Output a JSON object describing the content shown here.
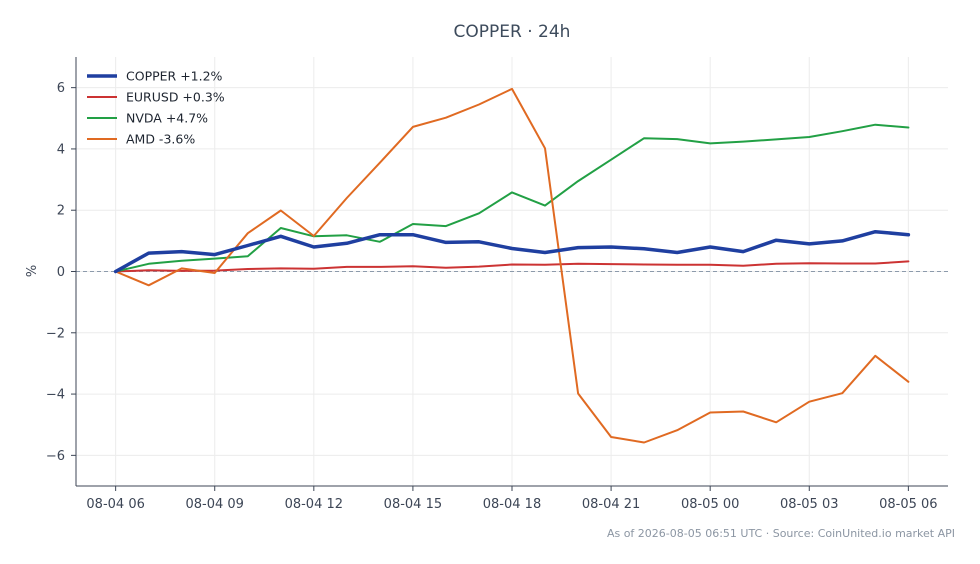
{
  "chart_data": {
    "type": "line",
    "title": "COPPER · 24h",
    "ylabel": "%",
    "xlabel": "",
    "ylim": [
      -7,
      7
    ],
    "y_ticks": [
      -6,
      -4,
      -2,
      0,
      2,
      4,
      6
    ],
    "y_tick_labels": [
      "−6",
      "−4",
      "−2",
      "0",
      "2",
      "4",
      "6"
    ],
    "x_ticks": [
      0,
      3,
      6,
      9,
      12,
      15,
      18,
      21,
      24
    ],
    "x_tick_labels": [
      "08-04 06",
      "08-04 09",
      "08-04 12",
      "08-04 15",
      "08-04 18",
      "08-04 21",
      "08-05 00",
      "08-05 03",
      "08-05 06"
    ],
    "x": [
      0,
      1,
      2,
      3,
      4,
      5,
      6,
      7,
      8,
      9,
      10,
      11,
      12,
      13,
      14,
      15,
      16,
      17,
      18,
      19,
      20,
      21,
      22,
      23,
      24
    ],
    "grid": true,
    "reference_line": 0,
    "legend_position": "top-left",
    "series": [
      {
        "name": "COPPER +1.2%",
        "color": "#1f3fa0",
        "values": [
          0.0,
          0.6,
          0.65,
          0.55,
          0.85,
          1.15,
          0.8,
          0.92,
          1.2,
          1.2,
          0.95,
          0.97,
          0.75,
          0.62,
          0.78,
          0.8,
          0.74,
          0.62,
          0.8,
          0.65,
          1.02,
          0.9,
          1.0,
          1.3,
          1.2
        ]
      },
      {
        "name": "EURUSD +0.3%",
        "color": "#cc3333",
        "values": [
          0.0,
          0.04,
          0.02,
          0.03,
          0.08,
          0.1,
          0.09,
          0.15,
          0.15,
          0.17,
          0.12,
          0.16,
          0.23,
          0.22,
          0.25,
          0.24,
          0.23,
          0.22,
          0.22,
          0.19,
          0.25,
          0.27,
          0.26,
          0.26,
          0.33
        ]
      },
      {
        "name": "NVDA +4.7%",
        "color": "#22a045",
        "values": [
          0.0,
          0.25,
          0.35,
          0.42,
          0.5,
          1.42,
          1.15,
          1.18,
          0.97,
          1.55,
          1.48,
          1.9,
          2.58,
          2.15,
          2.95,
          3.65,
          4.35,
          4.32,
          4.18,
          4.24,
          4.31,
          4.39,
          4.58,
          4.79,
          4.7
        ]
      },
      {
        "name": "AMD -3.6%",
        "color": "#e06a22",
        "values": [
          0.0,
          -0.45,
          0.1,
          -0.05,
          1.25,
          1.99,
          1.16,
          2.4,
          3.55,
          4.72,
          5.02,
          5.45,
          5.96,
          4.02,
          -3.98,
          -5.4,
          -5.58,
          -5.18,
          -4.6,
          -4.57,
          -4.92,
          -4.25,
          -3.97,
          -2.75,
          -3.6
        ]
      }
    ]
  },
  "footer": "As of 2026-08-05 06:51 UTC · Source: CoinUnited.io market API"
}
